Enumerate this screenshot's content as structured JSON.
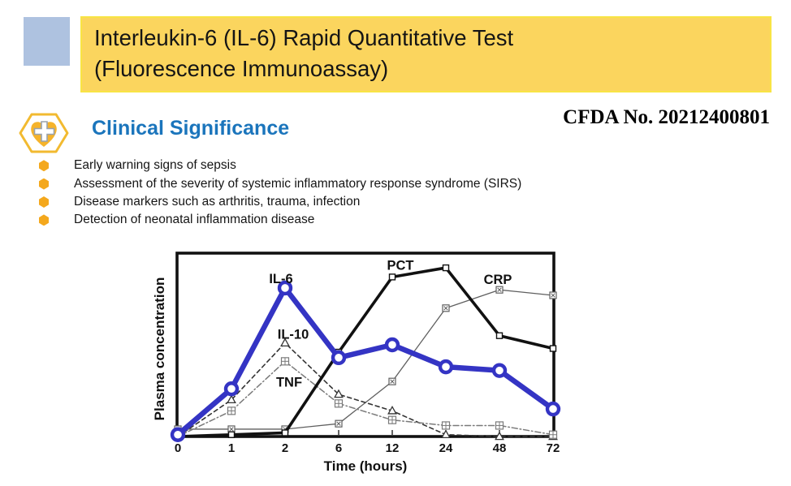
{
  "header": {
    "title_line1": "Interleukin-6 (IL-6) Rapid Quantitative Test",
    "title_line2": "(Fluorescence Immunoassay)",
    "banner_color": "#fbd55e",
    "accent_square_color": "#aec2e0",
    "cfda_number": "CFDA No. 20212400801"
  },
  "section": {
    "heading": "Clinical Significance",
    "heading_color": "#1b75bc",
    "icon": "hexagon-heart-cross-icon",
    "icon_colors": {
      "hexagon": "#f2ba30",
      "heart": "#f5b32b",
      "cross": "#ffffff",
      "cross_outline": "#9aa2ab"
    }
  },
  "bullets": {
    "bullet_icon": "hexagon-bullet",
    "bullet_color": "#f4a81d",
    "items": [
      "Early warning signs of sepsis",
      "Assessment of the severity of systemic inflammatory response syndrome (SIRS)",
      "Disease markers such as arthritis, trauma, infection",
      "Detection of neonatal inflammation disease"
    ]
  },
  "chart_data": {
    "type": "line",
    "title": "",
    "xlabel": "Time (hours)",
    "ylabel": "Plasma concentration",
    "x_ticks": [
      "0",
      "1",
      "2",
      "6",
      "12",
      "24",
      "48",
      "72"
    ],
    "x_spacing": "categorical-equal",
    "ylim": [
      0,
      100
    ],
    "y_units": "relative plasma concentration (axis unlabeled)",
    "grid": false,
    "legend": "inline-labels",
    "series": [
      {
        "name": "CRP",
        "values": [
          4,
          4,
          4,
          7,
          30,
          70,
          80,
          77
        ],
        "color": "#5f5f5f",
        "line": "thin",
        "marker": "square-x",
        "label_at": {
          "index": 6,
          "dx": -2,
          "dy": -7
        }
      },
      {
        "name": "IL-10",
        "values": [
          0,
          20,
          51,
          23,
          14,
          1,
          0,
          0
        ],
        "color": "#333333",
        "line": "dashed",
        "marker": "open-triangle",
        "label_at": {
          "index": 2,
          "dx": 10,
          "dy": -5
        }
      },
      {
        "name": "TNF",
        "values": [
          0,
          14,
          41,
          18,
          9,
          6,
          6,
          1
        ],
        "color": "#7a7a7a",
        "line": "dash-dot",
        "marker": "square-plus",
        "label_at": {
          "index": 2,
          "dx": 5,
          "dy": 31
        }
      },
      {
        "name": "PCT",
        "values": [
          0,
          1,
          2,
          46,
          87,
          92,
          55,
          48
        ],
        "color": "#111111",
        "line": "solid",
        "marker": "open-square",
        "label_at": {
          "index": 4,
          "dx": 10,
          "dy": -9
        }
      },
      {
        "name": "IL-6",
        "values": [
          1,
          26,
          81,
          43,
          50,
          38,
          36,
          15
        ],
        "color": "#3434c4",
        "line": "solid-thick",
        "marker": "open-circle",
        "label_at": {
          "index": 2,
          "dx": -5,
          "dy": -6
        }
      }
    ]
  }
}
